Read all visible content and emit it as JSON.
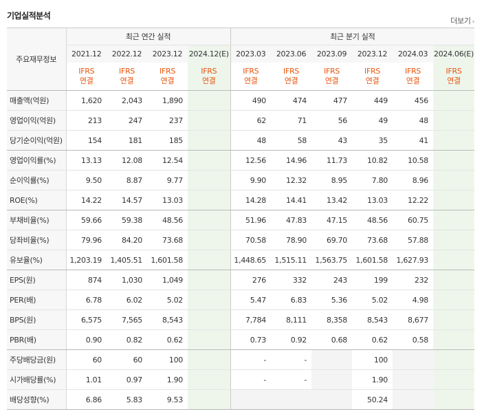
{
  "section_title": "기업실적분석",
  "more_label": "더보기",
  "more_icon": "chevron-right-icon",
  "row_header": "주요재무정보",
  "groups": {
    "annual": "최근 연간 실적",
    "quarter": "최근 분기 실적"
  },
  "periods": [
    "2021.12",
    "2022.12",
    "2023.12",
    "2024.12(E)",
    "2023.03",
    "2023.06",
    "2023.09",
    "2023.12",
    "2024.03",
    "2024.06(E)"
  ],
  "ifrs": "IFRS",
  "consolidated": "연결",
  "rows": [
    {
      "label": "매출액(억원)",
      "values": [
        "1,620",
        "2,043",
        "1,890",
        "",
        "490",
        "474",
        "477",
        "449",
        "456",
        ""
      ]
    },
    {
      "label": "영업이익(억원)",
      "values": [
        "213",
        "247",
        "237",
        "",
        "62",
        "71",
        "56",
        "49",
        "48",
        ""
      ]
    },
    {
      "label": "당기순이익(억원)",
      "values": [
        "154",
        "181",
        "185",
        "",
        "48",
        "58",
        "43",
        "35",
        "41",
        ""
      ]
    },
    {
      "label": "영업이익률(%)",
      "values": [
        "13.13",
        "12.08",
        "12.54",
        "",
        "12.56",
        "14.96",
        "11.73",
        "10.82",
        "10.58",
        ""
      ]
    },
    {
      "label": "순이익률(%)",
      "values": [
        "9.50",
        "8.87",
        "9.77",
        "",
        "9.90",
        "12.32",
        "8.95",
        "7.80",
        "8.96",
        ""
      ]
    },
    {
      "label": "ROE(%)",
      "values": [
        "14.22",
        "14.57",
        "13.03",
        "",
        "14.28",
        "14.41",
        "13.42",
        "13.03",
        "12.22",
        ""
      ]
    },
    {
      "label": "부채비율(%)",
      "values": [
        "59.66",
        "59.38",
        "48.56",
        "",
        "51.96",
        "47.83",
        "47.15",
        "48.56",
        "60.75",
        ""
      ]
    },
    {
      "label": "당좌비율(%)",
      "values": [
        "79.96",
        "84.20",
        "73.68",
        "",
        "70.58",
        "78.90",
        "69.70",
        "73.68",
        "57.88",
        ""
      ]
    },
    {
      "label": "유보율(%)",
      "values": [
        "1,203.19",
        "1,405.51",
        "1,601.58",
        "",
        "1,448.65",
        "1,515.11",
        "1,563.75",
        "1,601.58",
        "1,627.93",
        ""
      ]
    },
    {
      "label": "EPS(원)",
      "values": [
        "874",
        "1,030",
        "1,049",
        "",
        "276",
        "332",
        "243",
        "199",
        "232",
        ""
      ]
    },
    {
      "label": "PER(배)",
      "values": [
        "6.78",
        "6.02",
        "5.02",
        "",
        "5.47",
        "6.83",
        "5.36",
        "5.02",
        "4.98",
        ""
      ]
    },
    {
      "label": "BPS(원)",
      "values": [
        "6,575",
        "7,565",
        "8,543",
        "",
        "7,784",
        "8,111",
        "8,358",
        "8,543",
        "8,677",
        ""
      ]
    },
    {
      "label": "PBR(배)",
      "values": [
        "0.90",
        "0.82",
        "0.62",
        "",
        "0.73",
        "0.92",
        "0.68",
        "0.62",
        "0.58",
        ""
      ]
    },
    {
      "label": "주당배당금(원)",
      "values": [
        "60",
        "60",
        "100",
        "",
        "-",
        "-",
        "",
        "100",
        "",
        ""
      ]
    },
    {
      "label": "시가배당률(%)",
      "values": [
        "1.01",
        "0.97",
        "1.90",
        "",
        "-",
        "-",
        "",
        "1.90",
        "",
        ""
      ]
    },
    {
      "label": "배당성향(%)",
      "values": [
        "6.86",
        "5.83",
        "9.53",
        "",
        "",
        "",
        "",
        "50.24",
        "",
        ""
      ]
    }
  ],
  "colors": {
    "accent": "#e8540c",
    "estimate_bg": "#eef6ec",
    "header_bg": "#f7f7f7",
    "empty_bg": "#f4f4f4"
  }
}
